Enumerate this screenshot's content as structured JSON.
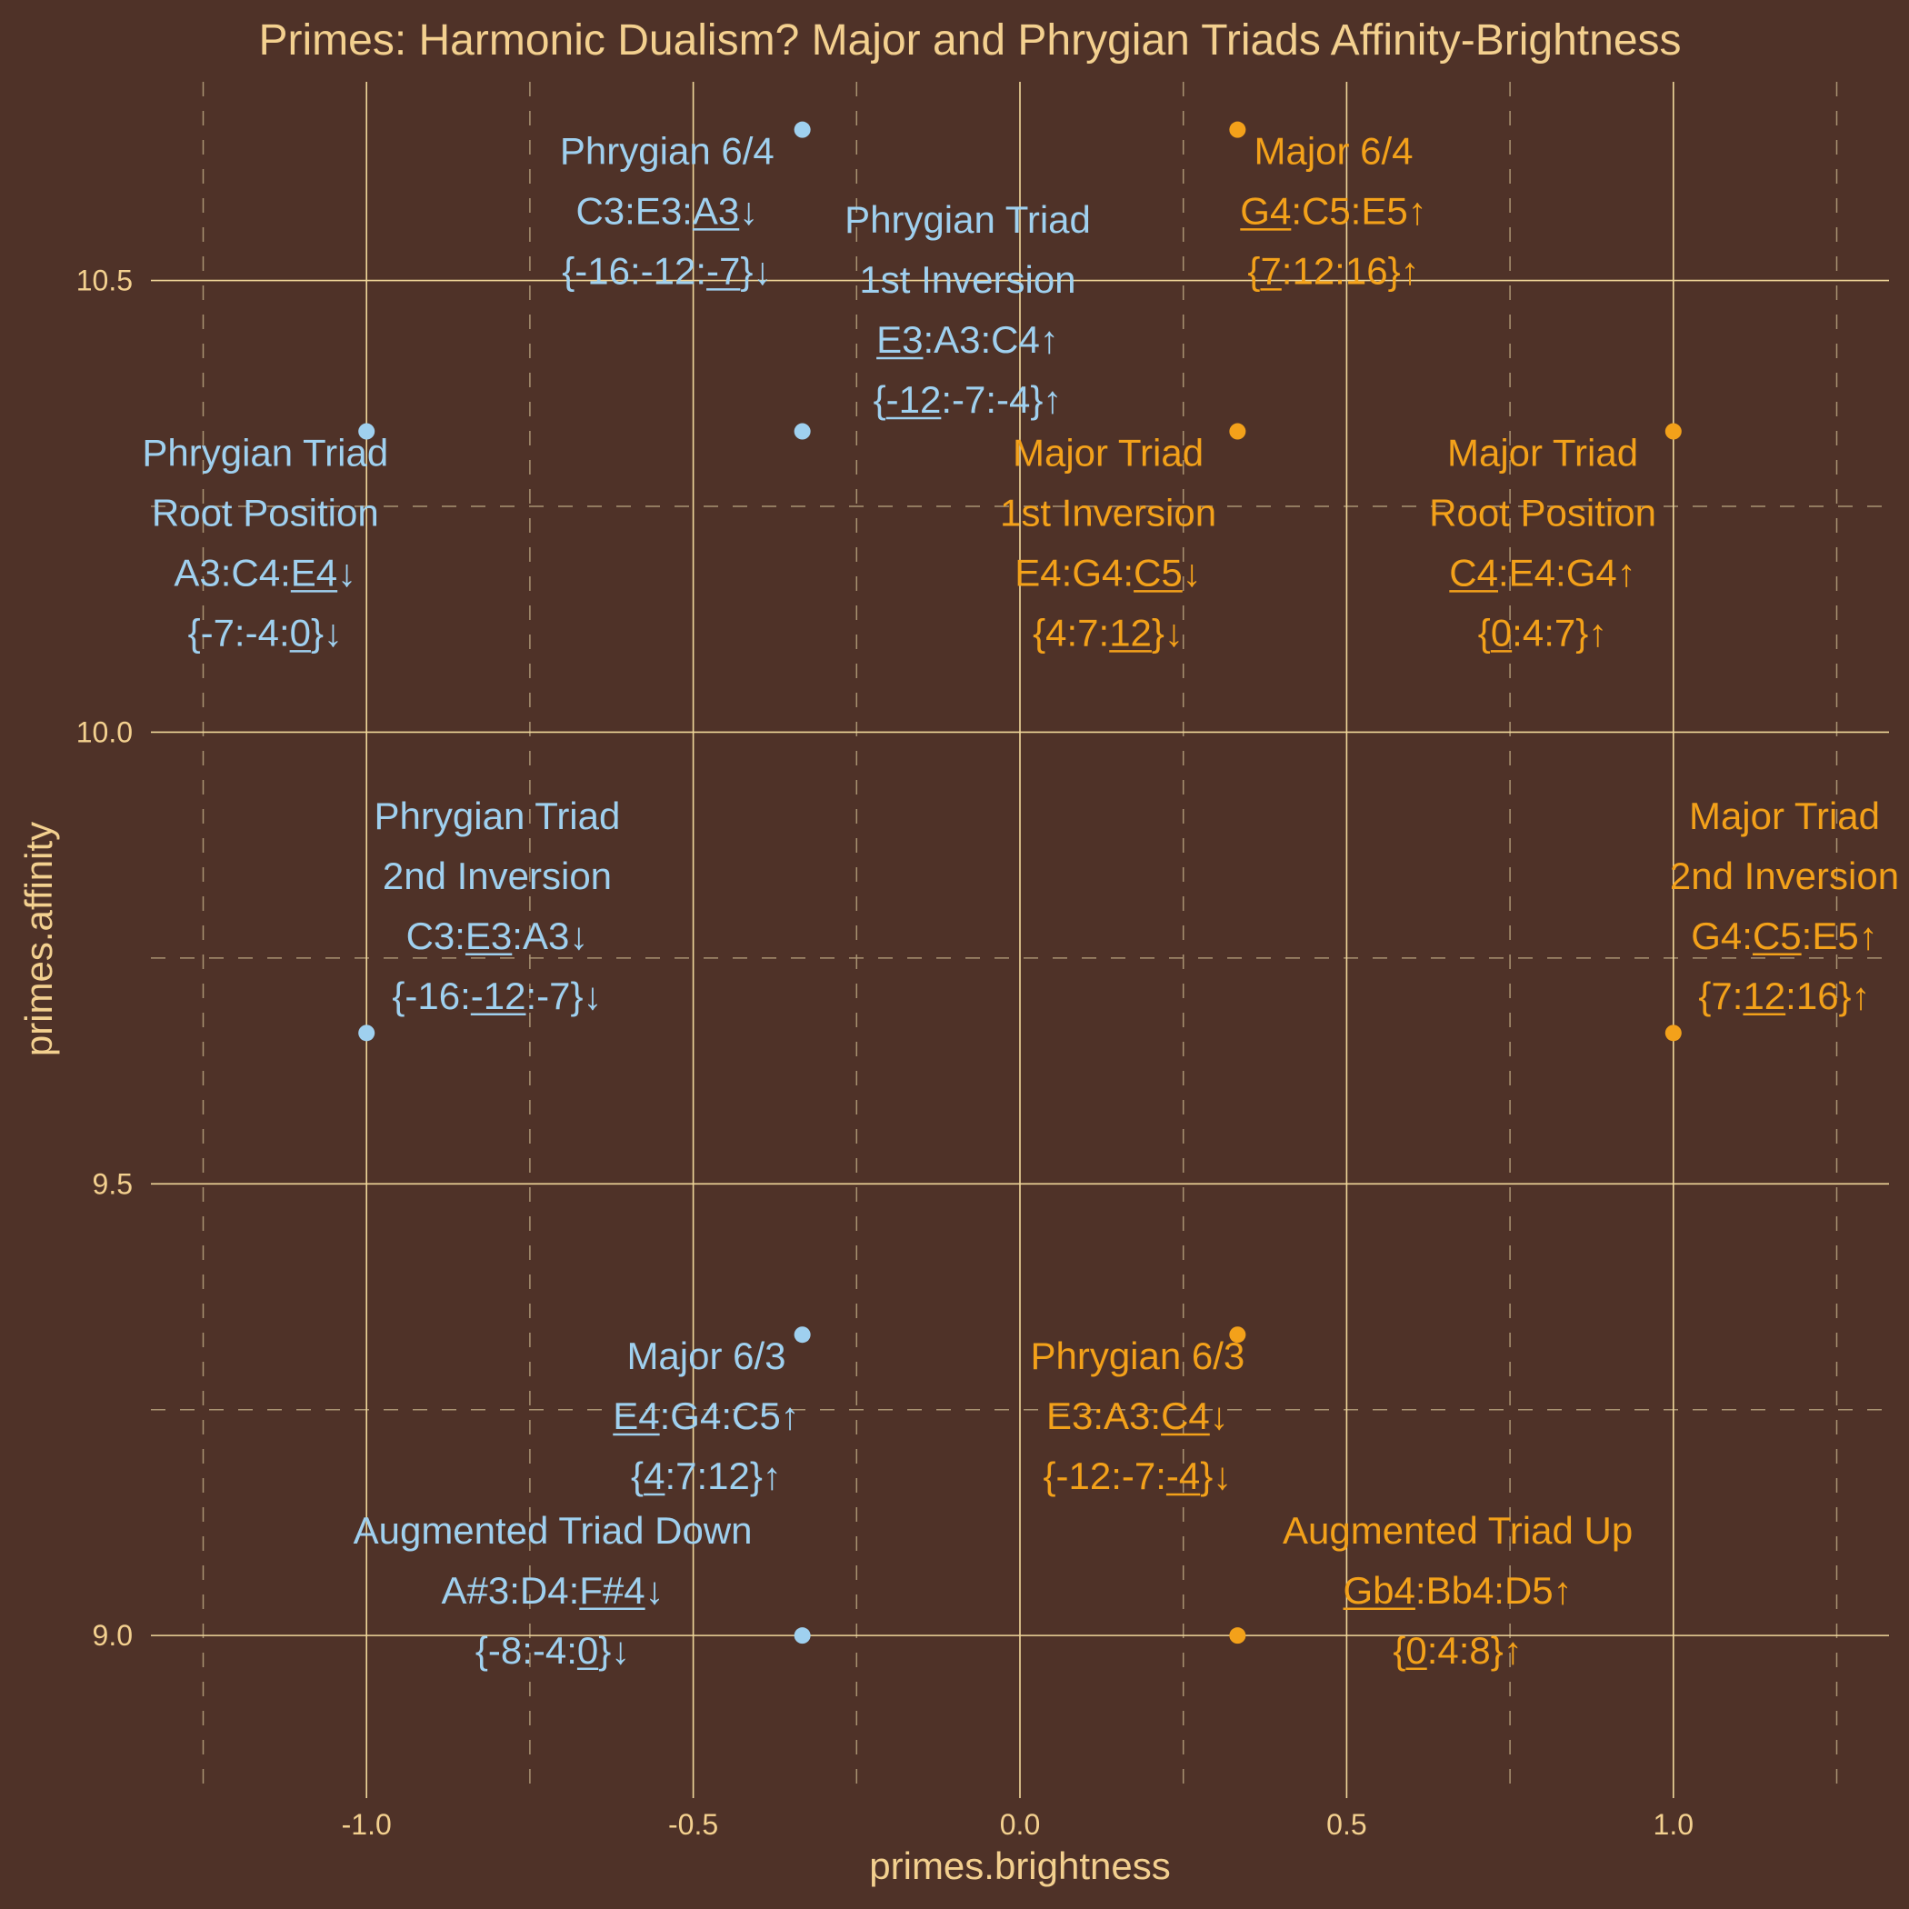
{
  "colors": {
    "background": "#4f3228",
    "grid_major": "#f0d79a",
    "grid_minor": "#a99372",
    "text": "#f3d08f",
    "phrygian": "#9fd0ef",
    "major": "#f3a11a"
  },
  "chart_data": {
    "type": "scatter",
    "title": "Primes: Harmonic Dualism? Major and Phrygian Triads Affinity-Brightness",
    "xlabel": "primes.brightness",
    "ylabel": "primes.affinity",
    "xlim": [
      -1.33,
      1.33
    ],
    "ylim": [
      8.82,
      10.72
    ],
    "x_major_ticks": [
      -1.0,
      -0.5,
      0.0,
      0.5,
      1.0
    ],
    "x_tick_labels": [
      "-1.0",
      "-0.5",
      "0.0",
      "0.5",
      "1.0"
    ],
    "x_minor_ticks": [
      -1.25,
      -0.75,
      -0.25,
      0.25,
      0.75,
      1.25
    ],
    "y_major_ticks": [
      9.0,
      9.5,
      10.0,
      10.5
    ],
    "y_tick_labels": [
      "9.0",
      "9.5",
      "10.0",
      "10.5"
    ],
    "y_minor_ticks": [
      9.25,
      9.75,
      10.25
    ],
    "grid": true,
    "legend": false,
    "series": [
      {
        "color_key": "phrygian",
        "points": [
          {
            "x": -0.333,
            "y": 10.667
          },
          {
            "x": -0.333,
            "y": 10.333
          },
          {
            "x": -1.0,
            "y": 10.333
          },
          {
            "x": -1.0,
            "y": 9.667
          },
          {
            "x": -0.333,
            "y": 9.333
          },
          {
            "x": -0.333,
            "y": 9.0
          }
        ]
      },
      {
        "color_key": "major",
        "points": [
          {
            "x": 0.333,
            "y": 10.667
          },
          {
            "x": 0.333,
            "y": 10.333
          },
          {
            "x": 1.0,
            "y": 10.333
          },
          {
            "x": 1.0,
            "y": 9.667
          },
          {
            "x": 0.333,
            "y": 9.333
          },
          {
            "x": 0.333,
            "y": 9.0
          }
        ]
      }
    ],
    "annotations": [
      {
        "name": "phrygian-6-4",
        "color_key": "phrygian",
        "ax": -0.54,
        "ay": 10.629,
        "lines": [
          [
            {
              "t": "Phrygian 6/4"
            }
          ],
          [
            {
              "t": "C3:E3:"
            },
            {
              "t": "A3",
              "u": true
            },
            {
              "t": "↓"
            }
          ],
          [
            {
              "t": "{-16:-12:"
            },
            {
              "t": "-7",
              "u": true
            },
            {
              "t": "}↓"
            }
          ]
        ]
      },
      {
        "name": "phrygian-triad-1st-inversion",
        "color_key": "phrygian",
        "ax": -0.08,
        "ay": 10.553,
        "lines": [
          [
            {
              "t": "Phrygian Triad"
            }
          ],
          [
            {
              "t": "1st Inversion"
            }
          ],
          [
            {
              "t": "E3",
              "u": true
            },
            {
              "t": ":A3:C4↑"
            }
          ],
          [
            {
              "t": "{"
            },
            {
              "t": "-12",
              "u": true
            },
            {
              "t": ":-7:-4}↑"
            }
          ]
        ]
      },
      {
        "name": "major-6-4",
        "color_key": "major",
        "ax": 0.48,
        "ay": 10.629,
        "lines": [
          [
            {
              "t": "Major 6/4"
            }
          ],
          [
            {
              "t": "G4",
              "u": true
            },
            {
              "t": ":C5:E5↑"
            }
          ],
          [
            {
              "t": "{"
            },
            {
              "t": "7",
              "u": true
            },
            {
              "t": ":12:16}↑"
            }
          ]
        ]
      },
      {
        "name": "phrygian-triad-root-position",
        "color_key": "phrygian",
        "ax": -1.155,
        "ay": 10.295,
        "lines": [
          [
            {
              "t": "Phrygian Triad"
            }
          ],
          [
            {
              "t": "Root Position"
            }
          ],
          [
            {
              "t": "A3:C4:"
            },
            {
              "t": "E4",
              "u": true
            },
            {
              "t": "↓"
            }
          ],
          [
            {
              "t": "{-7:-4:"
            },
            {
              "t": "0",
              "u": true
            },
            {
              "t": "}↓"
            }
          ]
        ]
      },
      {
        "name": "major-triad-1st-inversion",
        "color_key": "major",
        "ax": 0.135,
        "ay": 10.295,
        "lines": [
          [
            {
              "t": "Major Triad"
            }
          ],
          [
            {
              "t": "1st Inversion"
            }
          ],
          [
            {
              "t": "E4:G4:"
            },
            {
              "t": "C5",
              "u": true
            },
            {
              "t": "↓"
            }
          ],
          [
            {
              "t": "{4:7:"
            },
            {
              "t": "12",
              "u": true
            },
            {
              "t": "}↓"
            }
          ]
        ]
      },
      {
        "name": "major-triad-root-position",
        "color_key": "major",
        "ax": 0.8,
        "ay": 10.295,
        "lines": [
          [
            {
              "t": "Major Triad"
            }
          ],
          [
            {
              "t": "Root Position"
            }
          ],
          [
            {
              "t": "C4",
              "u": true
            },
            {
              "t": ":E4:G4↑"
            }
          ],
          [
            {
              "t": "{"
            },
            {
              "t": "0",
              "u": true
            },
            {
              "t": ":4:7}↑"
            }
          ]
        ]
      },
      {
        "name": "phrygian-triad-2nd-inversion",
        "color_key": "phrygian",
        "ax": -0.8,
        "ay": 9.893,
        "lines": [
          [
            {
              "t": "Phrygian Triad"
            }
          ],
          [
            {
              "t": "2nd Inversion"
            }
          ],
          [
            {
              "t": "C3:"
            },
            {
              "t": "E3",
              "u": true
            },
            {
              "t": ":A3↓"
            }
          ],
          [
            {
              "t": "{-16:"
            },
            {
              "t": "-12",
              "u": true
            },
            {
              "t": ":-7}↓"
            }
          ]
        ]
      },
      {
        "name": "major-triad-2nd-inversion",
        "color_key": "major",
        "ax": 1.17,
        "ay": 9.893,
        "lines": [
          [
            {
              "t": "Major Triad"
            }
          ],
          [
            {
              "t": "2nd Inversion"
            }
          ],
          [
            {
              "t": "G4:"
            },
            {
              "t": "C5",
              "u": true
            },
            {
              "t": ":E5↑"
            }
          ],
          [
            {
              "t": "{7:"
            },
            {
              "t": "12",
              "u": true
            },
            {
              "t": ":16}↑"
            }
          ]
        ]
      },
      {
        "name": "major-6-3",
        "color_key": "phrygian",
        "ax": -0.48,
        "ay": 9.295,
        "lines": [
          [
            {
              "t": "Major 6/3"
            }
          ],
          [
            {
              "t": "E4",
              "u": true
            },
            {
              "t": ":G4:C5↑"
            }
          ],
          [
            {
              "t": "{"
            },
            {
              "t": "4",
              "u": true
            },
            {
              "t": ":7:12}↑"
            }
          ]
        ]
      },
      {
        "name": "phrygian-6-3",
        "color_key": "major",
        "ax": 0.18,
        "ay": 9.295,
        "lines": [
          [
            {
              "t": "Phrygian 6/3"
            }
          ],
          [
            {
              "t": "E3:A3:"
            },
            {
              "t": "C4",
              "u": true
            },
            {
              "t": "↓"
            }
          ],
          [
            {
              "t": "{-12:-7:"
            },
            {
              "t": "-4",
              "u": true
            },
            {
              "t": "}↓"
            }
          ]
        ]
      },
      {
        "name": "augmented-triad-down",
        "color_key": "phrygian",
        "ax": -0.715,
        "ay": 9.102,
        "lines": [
          [
            {
              "t": "Augmented Triad Down"
            }
          ],
          [
            {
              "t": "A#3:D4:"
            },
            {
              "t": "F#4",
              "u": true
            },
            {
              "t": "↓"
            }
          ],
          [
            {
              "t": "{-8:-4:"
            },
            {
              "t": "0",
              "u": true
            },
            {
              "t": "}↓"
            }
          ]
        ]
      },
      {
        "name": "augmented-triad-up",
        "color_key": "major",
        "ax": 0.67,
        "ay": 9.102,
        "lines": [
          [
            {
              "t": "Augmented Triad Up"
            }
          ],
          [
            {
              "t": "Gb4",
              "u": true
            },
            {
              "t": ":Bb4:D5↑"
            }
          ],
          [
            {
              "t": "{"
            },
            {
              "t": "0",
              "u": true
            },
            {
              "t": ":4:8}↑"
            }
          ]
        ]
      }
    ]
  }
}
